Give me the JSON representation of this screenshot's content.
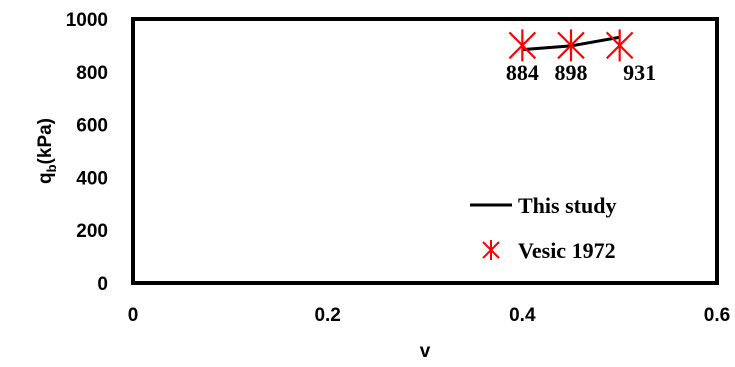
{
  "chart_data": {
    "type": "line",
    "xlabel": "v",
    "ylabel_main": "q",
    "ylabel_sub": "b",
    "ylabel_unit": "(kPa)",
    "xlim": [
      0,
      0.6
    ],
    "ylim": [
      0,
      1000
    ],
    "x_ticks": [
      0,
      0.2,
      0.4,
      0.6
    ],
    "x_tick_labels": [
      "0",
      "0.2",
      "0.4",
      "0.6"
    ],
    "y_ticks": [
      0,
      200,
      400,
      600,
      800,
      1000
    ],
    "y_tick_labels": [
      "0",
      "200",
      "400",
      "600",
      "800",
      "1000"
    ],
    "grid": false,
    "legend_position": "bottom-right",
    "series": [
      {
        "name": "This study",
        "kind": "line",
        "color": "#000000",
        "x": [
          0.4,
          0.45,
          0.5
        ],
        "y": [
          884,
          898,
          931
        ]
      },
      {
        "name": "Vesic 1972",
        "kind": "scatter",
        "marker": "star",
        "color": "#ff0000",
        "x": [
          0.4,
          0.45,
          0.5
        ],
        "y": [
          900,
          900,
          900
        ]
      }
    ],
    "data_labels": [
      "884",
      "898",
      "931"
    ]
  }
}
